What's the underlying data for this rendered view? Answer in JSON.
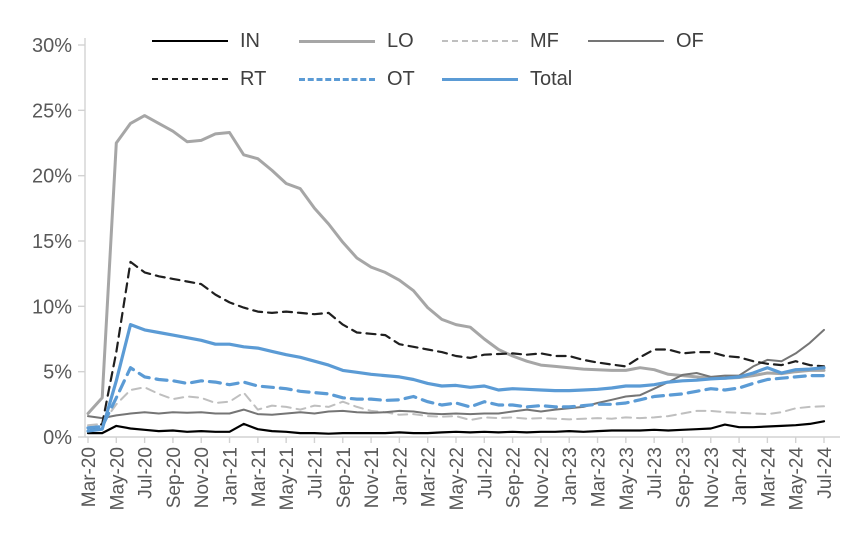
{
  "chart_data": {
    "type": "line",
    "title": "",
    "xlabel": "",
    "ylabel": "",
    "ylim": [
      0,
      30
    ],
    "grid": false,
    "legend_position": "top",
    "x_label_every": 2,
    "y_ticks": [
      "0%",
      "5%",
      "10%",
      "15%",
      "20%",
      "25%",
      "30%"
    ],
    "y_tick_values": [
      0,
      5,
      10,
      15,
      20,
      25,
      30
    ],
    "x": [
      "Mar-20",
      "Apr-20",
      "May-20",
      "Jun-20",
      "Jul-20",
      "Aug-20",
      "Sep-20",
      "Oct-20",
      "Nov-20",
      "Dec-20",
      "Jan-21",
      "Feb-21",
      "Mar-21",
      "Apr-21",
      "May-21",
      "Jun-21",
      "Jul-21",
      "Aug-21",
      "Sep-21",
      "Oct-21",
      "Nov-21",
      "Dec-21",
      "Jan-22",
      "Feb-22",
      "Mar-22",
      "Apr-22",
      "May-22",
      "Jun-22",
      "Jul-22",
      "Aug-22",
      "Sep-22",
      "Oct-22",
      "Nov-22",
      "Dec-22",
      "Jan-23",
      "Feb-23",
      "Mar-23",
      "Apr-23",
      "May-23",
      "Jun-23",
      "Jul-23",
      "Aug-23",
      "Sep-23",
      "Oct-23",
      "Nov-23",
      "Dec-23",
      "Jan-24",
      "Feb-24",
      "Mar-24",
      "Apr-24",
      "May-24",
      "Jun-24",
      "Jul-24"
    ],
    "series": [
      {
        "name": "IN",
        "color": "#000000",
        "style": "solid",
        "width": 2.2,
        "values": [
          0.3,
          0.3,
          0.85,
          0.65,
          0.55,
          0.45,
          0.5,
          0.4,
          0.45,
          0.4,
          0.4,
          1.0,
          0.6,
          0.45,
          0.4,
          0.3,
          0.3,
          0.25,
          0.3,
          0.3,
          0.3,
          0.3,
          0.35,
          0.3,
          0.3,
          0.35,
          0.4,
          0.35,
          0.4,
          0.35,
          0.4,
          0.35,
          0.4,
          0.4,
          0.45,
          0.4,
          0.45,
          0.5,
          0.5,
          0.5,
          0.55,
          0.5,
          0.55,
          0.6,
          0.65,
          0.95,
          0.75,
          0.75,
          0.8,
          0.85,
          0.9,
          1.0,
          1.2
        ]
      },
      {
        "name": "LO",
        "color": "#a6a6a6",
        "style": "solid",
        "width": 3,
        "values": [
          1.8,
          3.0,
          22.5,
          24.0,
          24.6,
          24.0,
          23.4,
          22.6,
          22.7,
          23.2,
          23.3,
          21.6,
          21.3,
          20.4,
          19.4,
          19.0,
          17.5,
          16.3,
          14.9,
          13.7,
          13.0,
          12.6,
          12.0,
          11.2,
          9.9,
          9.0,
          8.6,
          8.4,
          7.5,
          6.7,
          6.2,
          5.8,
          5.5,
          5.4,
          5.3,
          5.2,
          5.15,
          5.1,
          5.1,
          5.3,
          5.15,
          4.8,
          4.7,
          4.6,
          4.5,
          4.5,
          4.55,
          4.7,
          4.9,
          4.85,
          5.0,
          5.1,
          5.1
        ]
      },
      {
        "name": "MF",
        "color": "#bfbfbf",
        "style": "dashed",
        "width": 2,
        "values": [
          0.9,
          1.0,
          2.5,
          3.6,
          3.8,
          3.3,
          2.9,
          3.1,
          3.0,
          2.6,
          2.7,
          3.4,
          2.1,
          2.4,
          2.3,
          2.1,
          2.4,
          2.3,
          2.7,
          2.3,
          2.0,
          1.9,
          1.7,
          1.75,
          1.6,
          1.55,
          1.6,
          1.3,
          1.5,
          1.45,
          1.5,
          1.4,
          1.45,
          1.4,
          1.35,
          1.4,
          1.45,
          1.4,
          1.5,
          1.45,
          1.5,
          1.6,
          1.8,
          2.0,
          2.0,
          1.9,
          1.85,
          1.8,
          1.75,
          1.9,
          2.2,
          2.3,
          2.35
        ]
      },
      {
        "name": "OF",
        "color": "#757575",
        "style": "solid",
        "width": 2,
        "values": [
          1.6,
          1.45,
          1.65,
          1.8,
          1.9,
          1.8,
          1.9,
          1.85,
          1.9,
          1.8,
          1.8,
          2.1,
          1.75,
          1.7,
          1.8,
          1.9,
          1.8,
          1.95,
          2.0,
          1.9,
          1.85,
          1.9,
          2.0,
          1.95,
          1.8,
          1.75,
          1.8,
          1.75,
          1.8,
          1.8,
          1.95,
          2.1,
          1.95,
          2.1,
          2.2,
          2.3,
          2.6,
          2.85,
          3.1,
          3.2,
          3.7,
          4.2,
          4.75,
          4.9,
          4.6,
          4.7,
          4.7,
          5.4,
          5.9,
          5.8,
          6.4,
          7.2,
          8.2
        ]
      },
      {
        "name": "RT",
        "color": "#1f1f1f",
        "style": "dashed",
        "width": 2.2,
        "values": [
          0.4,
          1.0,
          6.5,
          13.4,
          12.6,
          12.3,
          12.1,
          11.9,
          11.7,
          10.9,
          10.3,
          9.9,
          9.6,
          9.5,
          9.6,
          9.5,
          9.4,
          9.5,
          8.6,
          8.0,
          7.9,
          7.8,
          7.1,
          6.9,
          6.7,
          6.5,
          6.2,
          6.05,
          6.3,
          6.35,
          6.4,
          6.3,
          6.4,
          6.2,
          6.2,
          5.9,
          5.7,
          5.55,
          5.4,
          6.1,
          6.7,
          6.7,
          6.4,
          6.5,
          6.5,
          6.2,
          6.1,
          5.8,
          5.6,
          5.5,
          5.8,
          5.5,
          5.4
        ]
      },
      {
        "name": "OT",
        "color": "#5b9bd5",
        "style": "dashed",
        "width": 3.2,
        "values": [
          0.7,
          0.8,
          3.0,
          5.3,
          4.6,
          4.4,
          4.3,
          4.1,
          4.3,
          4.2,
          4.0,
          4.2,
          3.9,
          3.8,
          3.7,
          3.5,
          3.4,
          3.3,
          3.0,
          2.9,
          2.9,
          2.8,
          2.85,
          3.1,
          2.7,
          2.45,
          2.6,
          2.3,
          2.7,
          2.45,
          2.45,
          2.3,
          2.4,
          2.3,
          2.3,
          2.4,
          2.5,
          2.5,
          2.6,
          2.85,
          3.1,
          3.2,
          3.3,
          3.5,
          3.7,
          3.6,
          3.75,
          4.1,
          4.4,
          4.5,
          4.6,
          4.7,
          4.7
        ]
      },
      {
        "name": "Total",
        "color": "#5b9bd5",
        "style": "solid",
        "width": 3.2,
        "values": [
          0.45,
          0.6,
          4.3,
          8.6,
          8.2,
          8.0,
          7.8,
          7.6,
          7.4,
          7.1,
          7.1,
          6.9,
          6.8,
          6.55,
          6.3,
          6.1,
          5.8,
          5.5,
          5.1,
          4.95,
          4.8,
          4.7,
          4.6,
          4.4,
          4.1,
          3.9,
          3.95,
          3.8,
          3.9,
          3.6,
          3.7,
          3.65,
          3.6,
          3.55,
          3.55,
          3.6,
          3.65,
          3.75,
          3.9,
          3.9,
          4.0,
          4.2,
          4.3,
          4.35,
          4.45,
          4.5,
          4.6,
          4.9,
          5.3,
          4.9,
          5.15,
          5.2,
          5.3
        ]
      }
    ],
    "colors": {
      "axis": "#d2d2d2",
      "axis_label": "#595959",
      "legend_label": "#404040",
      "blue": "#5b9bd5"
    }
  }
}
